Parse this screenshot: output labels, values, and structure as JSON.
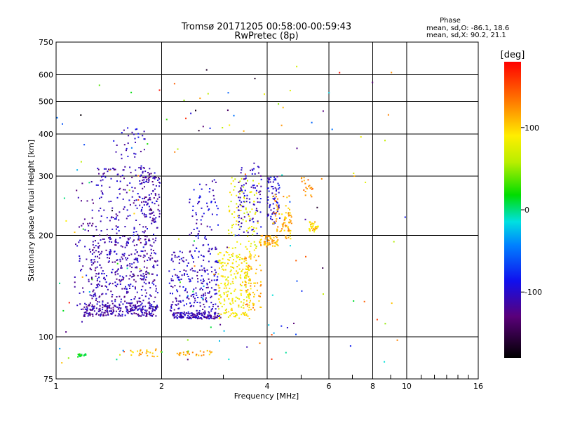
{
  "chart_data": {
    "type": "scatter",
    "title": "Tromsø 20171205 00:58:00-00:59:43",
    "subtitle": "RwPretec (8p)",
    "xlabel": "Frequency [MHz]",
    "ylabel": "Stationary phase Virtual Height [km]",
    "x_scale": "log",
    "y_scale": "log",
    "xlim": [
      1,
      16
    ],
    "ylim": [
      75,
      750
    ],
    "x_ticks": [
      1,
      2,
      4,
      6,
      8,
      10,
      16
    ],
    "x_tick_labels": [
      "1",
      "2",
      "4",
      "6",
      "8",
      "10",
      "16"
    ],
    "y_ticks": [
      75,
      100,
      200,
      300,
      400,
      500,
      600,
      750
    ],
    "y_tick_labels": [
      "75",
      "100",
      "200",
      "300",
      "400",
      "500",
      "600",
      "750"
    ],
    "grid": true,
    "phase_box": {
      "title": "Phase",
      "line_o": "mean, sd,O: -86.1, 18.6",
      "line_x": "mean, sd,X:  90.2, 21.1"
    },
    "colorbar": {
      "label": "[deg]",
      "range": [
        -180,
        180
      ],
      "ticks": [
        100,
        0,
        -100
      ],
      "tick_labels": [
        "100",
        "0",
        "-100"
      ]
    },
    "clusters": [
      {
        "f": [
          1.13,
          1.3
        ],
        "h": [
          110,
          290
        ],
        "deg": -115,
        "n": 60
      },
      {
        "f": [
          1.2,
          1.95
        ],
        "h": [
          115,
          125
        ],
        "deg": -112,
        "n": 240
      },
      {
        "f": [
          1.25,
          1.95
        ],
        "h": [
          125,
          200
        ],
        "deg": -110,
        "n": 380
      },
      {
        "f": [
          1.3,
          1.95
        ],
        "h": [
          200,
          320
        ],
        "deg": -108,
        "n": 170
      },
      {
        "f": [
          1.45,
          1.8
        ],
        "h": [
          300,
          420
        ],
        "deg": -105,
        "n": 35
      },
      {
        "f": [
          1.75,
          1.98
        ],
        "h": [
          220,
          300
        ],
        "deg": -112,
        "n": 70
      },
      {
        "f": [
          2.15,
          2.95
        ],
        "h": [
          113,
          118
        ],
        "deg": -110,
        "n": 140
      },
      {
        "f": [
          2.1,
          2.9
        ],
        "h": [
          118,
          180
        ],
        "deg": -105,
        "n": 220
      },
      {
        "f": [
          2.4,
          2.9
        ],
        "h": [
          180,
          300
        ],
        "deg": -100,
        "n": 70
      },
      {
        "f": [
          2.9,
          3.6
        ],
        "h": [
          113,
          180
        ],
        "deg": 88,
        "n": 220
      },
      {
        "f": [
          3.1,
          3.8
        ],
        "h": [
          180,
          300
        ],
        "deg": 78,
        "n": 90
      },
      {
        "f": [
          3.3,
          3.85
        ],
        "h": [
          200,
          330
        ],
        "deg": -105,
        "n": 90
      },
      {
        "f": [
          3.45,
          3.85
        ],
        "h": [
          120,
          175
        ],
        "deg": 112,
        "n": 70
      },
      {
        "f": [
          3.8,
          4.3
        ],
        "h": [
          185,
          200
        ],
        "deg": 112,
        "n": 60
      },
      {
        "f": [
          4.0,
          4.35
        ],
        "h": [
          215,
          300
        ],
        "deg": -100,
        "n": 70
      },
      {
        "f": [
          4.15,
          4.65
        ],
        "h": [
          205,
          265
        ],
        "deg": 118,
        "n": 50
      },
      {
        "f": [
          4.4,
          4.7
        ],
        "h": [
          195,
          235
        ],
        "deg": 110,
        "n": 30
      },
      {
        "f": [
          5.25,
          5.6
        ],
        "h": [
          205,
          220
        ],
        "deg": 100,
        "n": 35
      },
      {
        "f": [
          5.0,
          5.4
        ],
        "h": [
          260,
          300
        ],
        "deg": 125,
        "n": 20
      },
      {
        "f": [
          1.15,
          1.22
        ],
        "h": [
          87,
          89
        ],
        "deg": 10,
        "n": 18
      },
      {
        "f": [
          1.6,
          2.0
        ],
        "h": [
          87,
          92
        ],
        "deg": 110,
        "n": 25
      },
      {
        "f": [
          2.2,
          2.8
        ],
        "h": [
          88,
          92
        ],
        "deg": 120,
        "n": 25
      },
      {
        "f": [
          1.0,
          10.0
        ],
        "h": [
          80,
          650
        ],
        "deg": 0,
        "n": 160
      }
    ]
  }
}
